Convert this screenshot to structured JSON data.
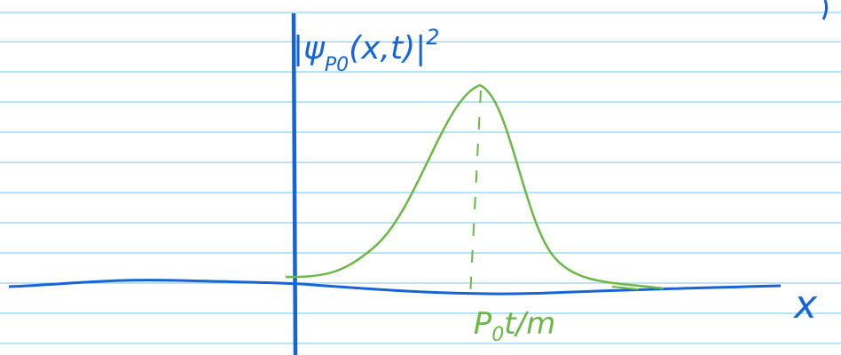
{
  "axis_labels": {
    "y": {
      "base": "|ψ",
      "subscript": "P0",
      "rest": "(x,t)|",
      "superscript": "2"
    },
    "x": "x"
  },
  "peak_label": {
    "base": "P",
    "subscript": "0",
    "rest": "t/m"
  }
}
